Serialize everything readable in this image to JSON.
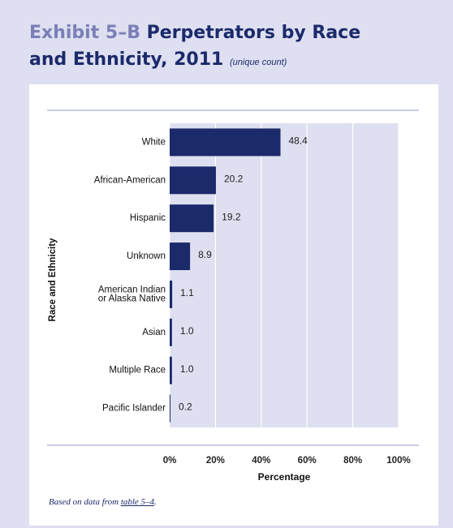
{
  "header": {
    "exhibit": "Exhibit 5–B",
    "title_line1": "Perpetrators by Race",
    "title_line2": "and Ethnicity, 2011",
    "subtitle": "(unique count)"
  },
  "footnote": {
    "prefix": "Based on data from ",
    "link": "table 5–4",
    "suffix": "."
  },
  "colors": {
    "bar": "#1b2a6b",
    "plot_background": "#dedff0",
    "panel_background": "#ffffff",
    "rule": "#b9bbe0"
  },
  "chart_data": {
    "type": "bar",
    "orientation": "horizontal",
    "title": "Perpetrators by Race and Ethnicity, 2011",
    "subtitle": "(unique count)",
    "xlabel": "Percentage",
    "ylabel": "Race and Ethnicity",
    "xlim": [
      0,
      100
    ],
    "x_ticks": [
      "0%",
      "20%",
      "40%",
      "60%",
      "80%",
      "100%"
    ],
    "grid": true,
    "categories": [
      [
        "White"
      ],
      [
        "African-American"
      ],
      [
        "Hispanic"
      ],
      [
        "Unknown"
      ],
      [
        "American Indian",
        "or Alaska Native"
      ],
      [
        "Asian"
      ],
      [
        "Multiple Race"
      ],
      [
        "Pacific Islander"
      ]
    ],
    "values": [
      48.4,
      20.2,
      19.2,
      8.9,
      1.1,
      1.0,
      1.0,
      0.2
    ],
    "data_labels": [
      "48.4",
      "20.2",
      "19.2",
      "8.9",
      "1.1",
      "1.0",
      "1.0",
      "0.2"
    ]
  }
}
